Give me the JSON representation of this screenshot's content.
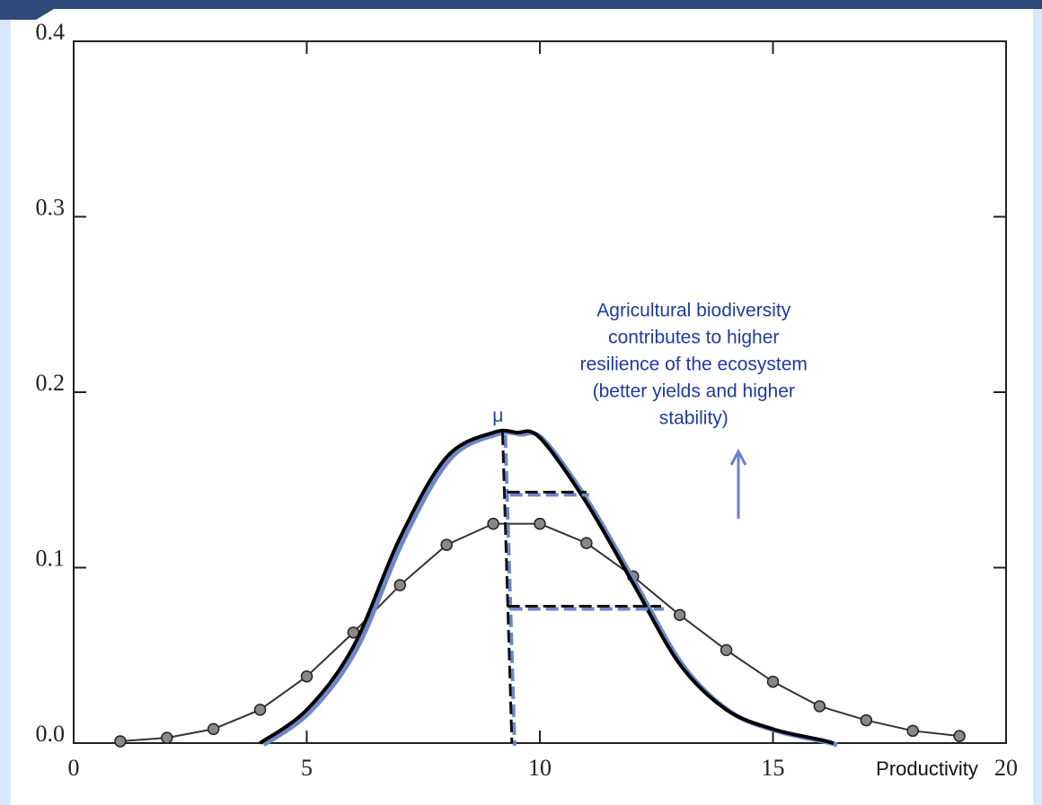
{
  "chart_data": {
    "type": "line",
    "x_label": "Productivity",
    "xlim": [
      0,
      20
    ],
    "xticks": [
      0,
      5,
      10,
      15,
      20
    ],
    "ylim": [
      0,
      0.4
    ],
    "yticks": [
      {
        "value": 0,
        "label": "0.0"
      },
      0.1,
      0.2,
      0.3,
      0.4
    ],
    "series": [
      {
        "color": "#333333",
        "markers": true,
        "smooth": false,
        "x": [
          1,
          2,
          3,
          4,
          5,
          6,
          7,
          8,
          9,
          10,
          11,
          12,
          13,
          14,
          15,
          16,
          17,
          18,
          19
        ],
        "values": [
          0.001,
          0.003,
          0.008,
          0.019,
          0.038,
          0.063,
          0.09,
          0.113,
          0.125,
          0.125,
          0.114,
          0.095,
          0.073,
          0.053,
          0.035,
          0.021,
          0.013,
          0.007,
          0.004
        ]
      },
      {
        "color": "#000000",
        "markers": false,
        "smooth": true,
        "x": [
          4,
          5,
          6,
          7,
          8,
          9,
          9.5,
          10,
          11,
          12,
          13,
          14,
          15,
          16,
          16.3
        ],
        "values": [
          0,
          0.019,
          0.055,
          0.117,
          0.163,
          0.177,
          0.177,
          0.174,
          0.137,
          0.091,
          0.045,
          0.019,
          0.008,
          0.002,
          0
        ]
      }
    ],
    "dashed_lines": [
      {
        "x": [
          9.2,
          9.4
        ],
        "y": [
          0.177,
          0
        ]
      },
      {
        "x": [
          9.3,
          11.0
        ],
        "y": [
          0.143,
          0.143
        ]
      },
      {
        "x": [
          9.3,
          12.6
        ],
        "y": [
          0.078,
          0.078
        ]
      }
    ],
    "annotations": [
      {
        "text": "μ",
        "x": 9.1,
        "y": 0.186
      },
      {
        "lines": [
          "Agricultural biodiversity",
          "contributes to higher",
          "resilience of the ecosystem",
          "(better yields and higher",
          "stability)"
        ],
        "x": 13.3,
        "y": 0.2
      }
    ]
  }
}
